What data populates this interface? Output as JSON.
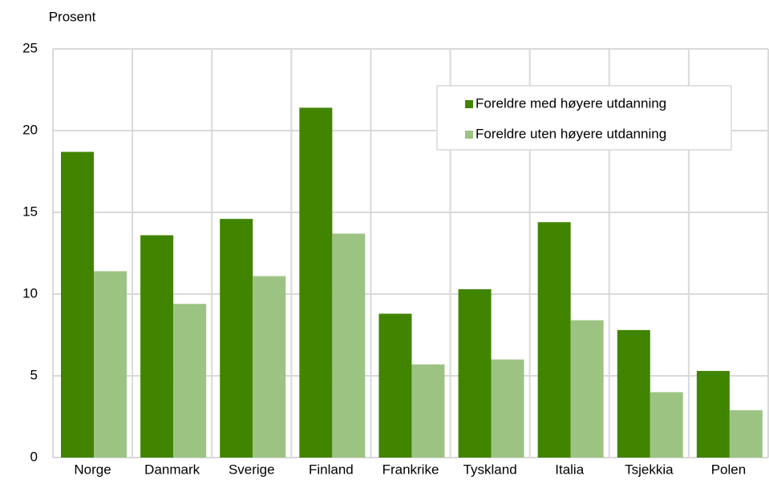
{
  "chart_data": {
    "type": "bar",
    "y_axis_label": "Prosent",
    "categories": [
      "Norge",
      "Danmark",
      "Sverige",
      "Finland",
      "Frankrike",
      "Tyskland",
      "Italia",
      "Tsjekkia",
      "Polen"
    ],
    "series": [
      {
        "name": "Foreldre med høyere utdanning",
        "color": "#418400",
        "values": [
          18.7,
          13.6,
          14.6,
          21.4,
          8.8,
          10.3,
          14.4,
          7.8,
          5.3
        ]
      },
      {
        "name": "Foreldre uten høyere utdanning",
        "color": "#9dc383",
        "values": [
          11.4,
          9.4,
          11.1,
          13.7,
          5.7,
          6.0,
          8.4,
          4.0,
          2.9
        ]
      }
    ],
    "ylim": [
      0,
      25
    ],
    "yticks": [
      0,
      5,
      10,
      15,
      20,
      25
    ],
    "grid": true,
    "legend": "top-right"
  }
}
